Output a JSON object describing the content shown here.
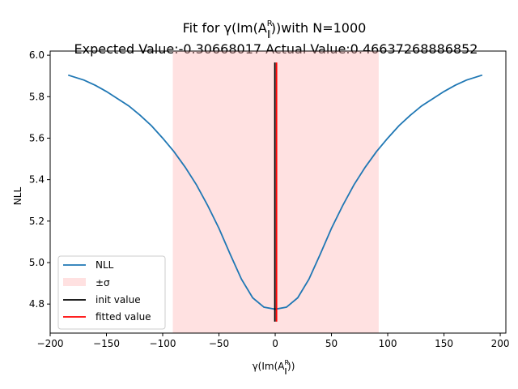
{
  "chart_data": {
    "type": "line",
    "title_line1": "Fit for γ(Im(A",
    "title_line1_sup": "R",
    "title_line1_sub": "∥",
    "title_line1_end": "))with N=1000",
    "title_line2": "Expected Value:-0.30668017 Actual Value:0.46637268886852",
    "xlabel": "γ(Im(A",
    "xlabel_sup": "R",
    "xlabel_sub": "∥",
    "xlabel_end": "))",
    "ylabel": "NLL",
    "xlim": [
      -200,
      205
    ],
    "ylim": [
      4.66,
      6.02
    ],
    "xticks": [
      -200,
      -150,
      -100,
      -50,
      0,
      50,
      100,
      150,
      200
    ],
    "xtick_labels": [
      "−200",
      "−150",
      "−100",
      "−50",
      "0",
      "50",
      "100",
      "150",
      "200"
    ],
    "yticks": [
      4.8,
      5.0,
      5.2,
      5.4,
      5.6,
      5.8,
      6.0
    ],
    "ytick_labels": [
      "4.8",
      "5.0",
      "5.2",
      "5.4",
      "5.6",
      "5.8",
      "6.0"
    ],
    "nll_curve": {
      "name": "NLL",
      "color": "#1f77b4",
      "x": [
        -184,
        -170,
        -160,
        -150,
        -140,
        -130,
        -120,
        -110,
        -100,
        -90,
        -80,
        -70,
        -60,
        -50,
        -40,
        -30,
        -20,
        -10,
        0,
        10,
        20,
        30,
        40,
        50,
        60,
        70,
        80,
        90,
        100,
        110,
        120,
        130,
        140,
        150,
        160,
        170,
        184
      ],
      "y": [
        5.904,
        5.88,
        5.855,
        5.825,
        5.79,
        5.755,
        5.71,
        5.66,
        5.6,
        5.535,
        5.46,
        5.375,
        5.275,
        5.165,
        5.04,
        4.92,
        4.83,
        4.785,
        4.775,
        4.785,
        4.83,
        4.92,
        5.04,
        5.165,
        5.275,
        5.375,
        5.46,
        5.535,
        5.6,
        5.66,
        5.71,
        5.755,
        5.79,
        5.825,
        5.855,
        5.88,
        5.904
      ]
    },
    "sigma_band": {
      "name": "±σ",
      "x_min": -91,
      "x_max": 92,
      "color": "#ffb3b3"
    },
    "init_value": {
      "name": "init value",
      "x": -0.3,
      "y_min": 4.715,
      "y_max": 5.965,
      "color": "#000000"
    },
    "fitted_value": {
      "name": "fitted value",
      "x": 0.47,
      "y_min": 4.715,
      "y_max": 5.965,
      "color": "#ff0000"
    },
    "legend": {
      "position": "lower-left",
      "entries": [
        "NLL",
        "±σ",
        "init value",
        "fitted value"
      ]
    }
  }
}
